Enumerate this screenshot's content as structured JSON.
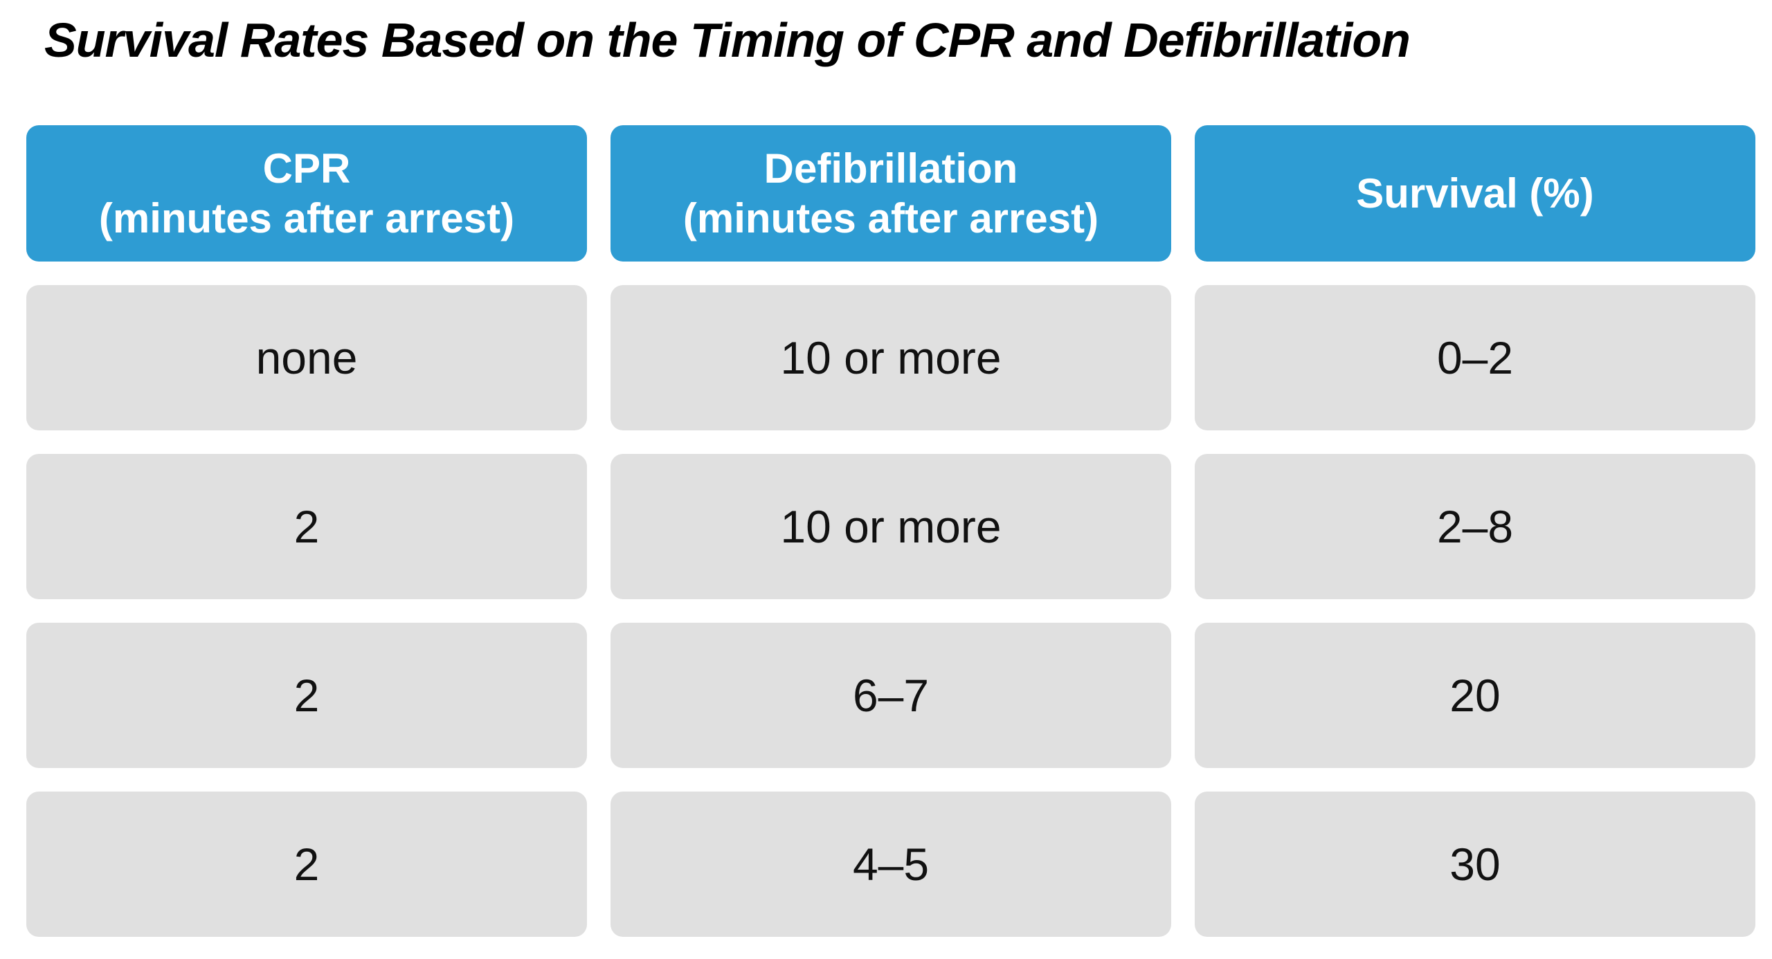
{
  "title": "Survival Rates Based on the Timing of CPR and Defibrillation",
  "colors": {
    "page_bg": "#ffffff",
    "title_text": "#000000",
    "header_bg": "#2e9cd3",
    "header_text": "#ffffff",
    "row_bg": "#e0e0e0",
    "row_text": "#111111"
  },
  "chart_data": {
    "type": "table",
    "title": "Survival Rates Based on the Timing of CPR and Defibrillation",
    "columns": [
      "CPR (minutes after arrest)",
      "Defibrillation (minutes after arrest)",
      "Survival (%)"
    ],
    "rows": [
      [
        "none",
        "10 or more",
        "0–2"
      ],
      [
        "2",
        "10 or more",
        "2–8"
      ],
      [
        "2",
        "6–7",
        "20"
      ],
      [
        "2",
        "4–5",
        "30"
      ]
    ]
  },
  "table": {
    "headers": [
      {
        "line1": "CPR",
        "line2": "(minutes after arrest)"
      },
      {
        "line1": "Defibrillation",
        "line2": "(minutes after arrest)"
      },
      {
        "line1": "Survival (%)",
        "line2": ""
      }
    ],
    "rows": [
      {
        "cpr": "none",
        "defib": "10 or more",
        "survival": "0–2"
      },
      {
        "cpr": "2",
        "defib": "10 or more",
        "survival": "2–8"
      },
      {
        "cpr": "2",
        "defib": "6–7",
        "survival": "20"
      },
      {
        "cpr": "2",
        "defib": "4–5",
        "survival": "30"
      }
    ]
  }
}
